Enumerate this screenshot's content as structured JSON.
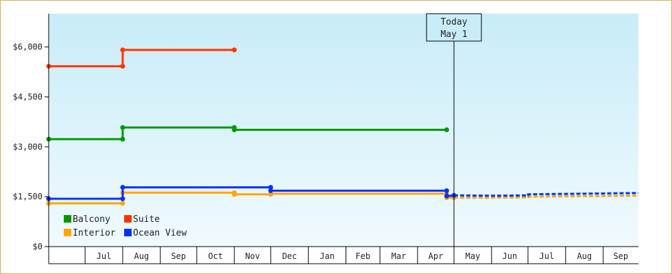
{
  "chart_data": {
    "type": "line",
    "step": true,
    "y_axis": {
      "min": 0,
      "max": 7000,
      "ticks": [
        0,
        1500,
        3000,
        4500,
        6000
      ],
      "tick_labels": [
        "$0",
        "$1,500",
        "$3,000",
        "$4,500",
        "$6,000"
      ]
    },
    "x_axis": {
      "start": "2013-06-01",
      "end": "2014-09-30",
      "month_labels": [
        "Jul",
        "Aug",
        "Sep",
        "Oct",
        "Nov",
        "Dec",
        "Jan",
        "Feb",
        "Mar",
        "Apr",
        "May",
        "Jun",
        "Jul",
        "Aug",
        "Sep"
      ],
      "month_starts": [
        "2013-07-01",
        "2013-08-01",
        "2013-09-01",
        "2013-10-01",
        "2013-11-01",
        "2013-12-01",
        "2014-01-01",
        "2014-02-01",
        "2014-03-01",
        "2014-04-01",
        "2014-05-01",
        "2014-06-01",
        "2014-07-01",
        "2014-08-01",
        "2014-09-01"
      ]
    },
    "today": {
      "date": "2014-05-01",
      "label_line1": "Today",
      "label_line2": "May 1"
    },
    "series": [
      {
        "name": "Balcony",
        "color": "#009900",
        "points": [
          [
            "2013-06-01",
            3230
          ],
          [
            "2013-08-01",
            3230
          ],
          [
            "2013-08-01",
            3580
          ],
          [
            "2013-11-01",
            3580
          ],
          [
            "2013-11-01",
            3510
          ],
          [
            "2014-04-25",
            3510
          ]
        ],
        "projection": []
      },
      {
        "name": "Suite",
        "color": "#ff3300",
        "points": [
          [
            "2013-06-01",
            5420
          ],
          [
            "2013-08-01",
            5420
          ],
          [
            "2013-08-01",
            5910
          ],
          [
            "2013-11-01",
            5910
          ]
        ],
        "projection": []
      },
      {
        "name": "Interior",
        "color": "#ffa500",
        "points": [
          [
            "2013-06-01",
            1300
          ],
          [
            "2013-08-01",
            1300
          ],
          [
            "2013-08-01",
            1620
          ],
          [
            "2013-11-01",
            1620
          ],
          [
            "2013-11-01",
            1570
          ],
          [
            "2013-12-01",
            1570
          ],
          [
            "2013-12-01",
            1590
          ],
          [
            "2014-04-25",
            1590
          ],
          [
            "2014-04-25",
            1470
          ],
          [
            "2014-05-01",
            1470
          ]
        ],
        "projection": [
          [
            "2014-05-01",
            1470
          ],
          [
            "2014-06-01",
            1470
          ],
          [
            "2014-07-01",
            1480
          ],
          [
            "2014-07-01",
            1500
          ],
          [
            "2014-09-30",
            1530
          ]
        ]
      },
      {
        "name": "Ocean View",
        "color": "#0033ff",
        "points": [
          [
            "2013-06-01",
            1440
          ],
          [
            "2013-08-01",
            1440
          ],
          [
            "2013-08-01",
            1780
          ],
          [
            "2013-12-01",
            1780
          ],
          [
            "2013-12-01",
            1680
          ],
          [
            "2014-04-25",
            1680
          ],
          [
            "2014-04-25",
            1520
          ],
          [
            "2014-05-01",
            1540
          ]
        ],
        "projection": [
          [
            "2014-05-01",
            1540
          ],
          [
            "2014-06-01",
            1530
          ],
          [
            "2014-07-01",
            1540
          ],
          [
            "2014-07-01",
            1570
          ],
          [
            "2014-09-30",
            1610
          ]
        ]
      }
    ],
    "legend": [
      {
        "name": "Balcony",
        "color": "#009900"
      },
      {
        "name": "Suite",
        "color": "#ff3300"
      },
      {
        "name": "Interior",
        "color": "#ffa500"
      },
      {
        "name": "Ocean View",
        "color": "#0033ff"
      }
    ]
  }
}
